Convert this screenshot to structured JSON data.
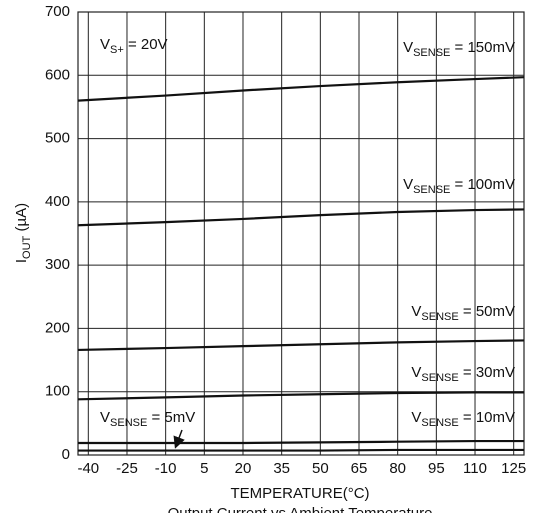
{
  "chart_data": {
    "type": "line",
    "title": "Output Current vs Ambient Temperature",
    "xlabel": "TEMPERATURE(°C)",
    "ylabel": {
      "prefix": "I",
      "sub": "OUT",
      "suffix": " (µA)"
    },
    "annotation": {
      "prefix": "V",
      "sub": "S+",
      "suffix": " = 20V"
    },
    "x": [
      -44,
      -10,
      20,
      50,
      80,
      110,
      129
    ],
    "xlim": [
      -44,
      129
    ],
    "xticks": [
      -40,
      -25,
      -10,
      5,
      20,
      35,
      50,
      65,
      80,
      95,
      110,
      125
    ],
    "ylim": [
      0,
      700
    ],
    "yticks": [
      0,
      100,
      200,
      300,
      400,
      500,
      600,
      700
    ],
    "grid": true,
    "series": [
      {
        "name": {
          "prefix": "V",
          "sub": "SENSE",
          "suffix": " = 150mV"
        },
        "color": "#111111",
        "values": [
          560,
          568,
          576,
          583,
          589,
          594,
          597
        ]
      },
      {
        "name": {
          "prefix": "V",
          "sub": "SENSE",
          "suffix": " = 100mV"
        },
        "color": "#111111",
        "values": [
          363,
          368,
          373,
          379,
          384,
          387,
          388
        ]
      },
      {
        "name": {
          "prefix": "V",
          "sub": "SENSE",
          "suffix": " = 50mV"
        },
        "color": "#111111",
        "values": [
          166,
          169,
          172,
          175,
          178,
          180,
          181
        ]
      },
      {
        "name": {
          "prefix": "V",
          "sub": "SENSE",
          "suffix": " = 30mV"
        },
        "color": "#111111",
        "values": [
          88,
          91,
          94,
          96,
          98,
          99,
          99
        ]
      },
      {
        "name": {
          "prefix": "V",
          "sub": "SENSE",
          "suffix": " = 10mV"
        },
        "color": "#111111",
        "values": [
          19,
          19,
          19,
          20,
          21,
          22,
          22
        ]
      },
      {
        "name": {
          "prefix": "V",
          "sub": "SENSE",
          "suffix": " = 5mV"
        },
        "color": "#111111",
        "values": [
          7,
          7,
          7,
          7,
          8,
          8,
          8
        ]
      }
    ]
  }
}
